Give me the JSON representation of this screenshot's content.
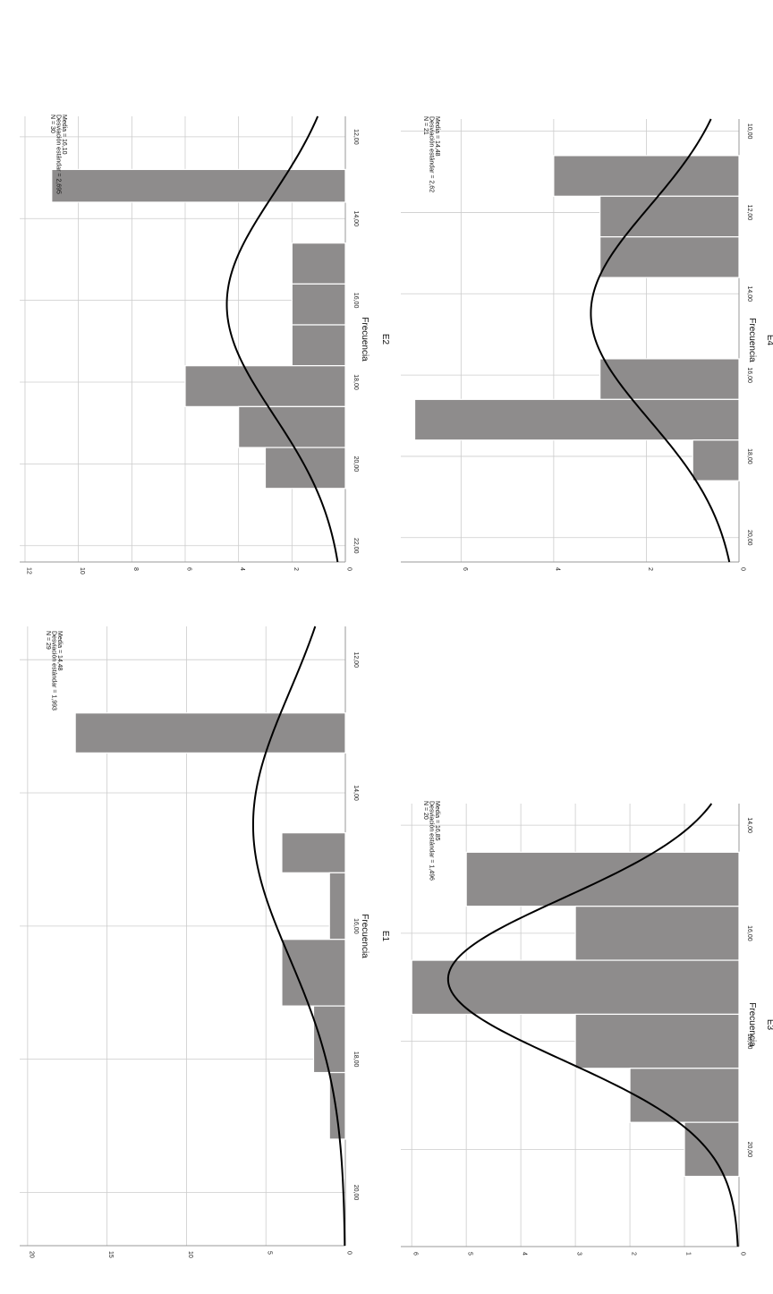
{
  "chart_data": [
    {
      "id": "E1",
      "type": "histogram",
      "title": "",
      "xlabel": "E1",
      "ylabel": "Frecuencia",
      "x_ticks": [
        12,
        14,
        16,
        18,
        20
      ],
      "x_tick_labels": [
        "12,00",
        "14,00",
        "16,00",
        "18,00",
        "20,00"
      ],
      "xlim": [
        11.5,
        20.8
      ],
      "y_ticks": [
        0,
        5,
        10,
        15,
        20
      ],
      "y_tick_labels": [
        "0",
        "5",
        "10",
        "15",
        "20"
      ],
      "ylim": [
        0,
        20.5
      ],
      "bins": [
        {
          "from": 12.8,
          "to": 13.4,
          "value": 17
        },
        {
          "from": 14.6,
          "to": 15.2,
          "value": 4
        },
        {
          "from": 15.2,
          "to": 16.2,
          "value": 1
        },
        {
          "from": 16.2,
          "to": 17.2,
          "value": 4
        },
        {
          "from": 17.2,
          "to": 18.2,
          "value": 2
        },
        {
          "from": 18.2,
          "to": 19.2,
          "value": 1
        }
      ],
      "normal_curve": {
        "mean": 14.48,
        "sd": 1.993,
        "n": 29,
        "bin_width": 1.0
      },
      "stats": [
        "Media = 14,48",
        "Desviación estándar = 1,993",
        "N = 29"
      ],
      "grid": true
    },
    {
      "id": "E2",
      "type": "histogram",
      "title": "",
      "xlabel": "E2",
      "ylabel": "Frecuencia",
      "x_ticks": [
        12,
        14,
        16,
        18,
        20,
        22
      ],
      "x_tick_labels": [
        "12,00",
        "14,00",
        "16,00",
        "18,00",
        "20,00",
        "22,00"
      ],
      "xlim": [
        11.5,
        22.4
      ],
      "y_ticks": [
        0,
        2,
        4,
        6,
        8,
        10,
        12
      ],
      "y_tick_labels": [
        "0",
        "2",
        "4",
        "6",
        "8",
        "10",
        "12"
      ],
      "ylim": [
        0,
        12.2
      ],
      "bins": [
        {
          "from": 12.8,
          "to": 13.6,
          "value": 11
        },
        {
          "from": 14.6,
          "to": 15.6,
          "value": 2
        },
        {
          "from": 15.6,
          "to": 16.6,
          "value": 2
        },
        {
          "from": 16.6,
          "to": 17.6,
          "value": 2
        },
        {
          "from": 17.6,
          "to": 18.6,
          "value": 6
        },
        {
          "from": 18.6,
          "to": 19.6,
          "value": 4
        },
        {
          "from": 19.6,
          "to": 20.6,
          "value": 3
        }
      ],
      "normal_curve": {
        "mean": 16.1,
        "sd": 2.695,
        "n": 30,
        "bin_width": 1.0
      },
      "stats": [
        "Media = 16,10",
        "Desviación estándar = 2,695",
        "N = 30"
      ],
      "grid": true
    },
    {
      "id": "E3",
      "type": "histogram",
      "title": "",
      "xlabel": "E3",
      "ylabel": "Frecuencia",
      "x_ticks": [
        14,
        16,
        18,
        20
      ],
      "x_tick_labels": [
        "14,00",
        "16,00",
        "18,00",
        "20,00"
      ],
      "xlim": [
        13.6,
        21.8
      ],
      "y_ticks": [
        0,
        1,
        2,
        3,
        4,
        5,
        6
      ],
      "y_tick_labels": [
        "0",
        "1",
        "2",
        "3",
        "4",
        "5",
        "6"
      ],
      "ylim": [
        0,
        6.2
      ],
      "bins": [
        {
          "from": 14.5,
          "to": 15.5,
          "value": 5
        },
        {
          "from": 15.5,
          "to": 16.5,
          "value": 3
        },
        {
          "from": 16.5,
          "to": 17.5,
          "value": 6
        },
        {
          "from": 17.5,
          "to": 18.5,
          "value": 3
        },
        {
          "from": 18.5,
          "to": 19.5,
          "value": 2
        },
        {
          "from": 19.5,
          "to": 20.5,
          "value": 1
        }
      ],
      "normal_curve": {
        "mean": 16.85,
        "sd": 1.496,
        "n": 20,
        "bin_width": 1.0
      },
      "stats": [
        "Media = 16,85",
        "Desviación estándar = 1,496",
        "N = 20"
      ],
      "grid": true
    },
    {
      "id": "E4",
      "type": "histogram",
      "title": "",
      "xlabel": "E4",
      "ylabel": "Frecuencia",
      "x_ticks": [
        10,
        12,
        14,
        16,
        18,
        20
      ],
      "x_tick_labels": [
        "10,00",
        "12,00",
        "14,00",
        "16,00",
        "18,00",
        "20,00"
      ],
      "xlim": [
        9.7,
        20.6
      ],
      "y_ticks": [
        0,
        2,
        4,
        6
      ],
      "y_tick_labels": [
        "0",
        "2",
        "4",
        "6"
      ],
      "ylim": [
        0,
        7.3
      ],
      "bins": [
        {
          "from": 10.6,
          "to": 11.6,
          "value": 4
        },
        {
          "from": 11.6,
          "to": 12.6,
          "value": 3
        },
        {
          "from": 12.6,
          "to": 13.6,
          "value": 3
        },
        {
          "from": 15.6,
          "to": 16.6,
          "value": 3
        },
        {
          "from": 16.6,
          "to": 17.6,
          "value": 7
        },
        {
          "from": 17.6,
          "to": 18.6,
          "value": 1
        }
      ],
      "normal_curve": {
        "mean": 14.48,
        "sd": 2.62,
        "n": 21,
        "bin_width": 1.0
      },
      "stats": [
        "Media = 14,48",
        "Desviación estándar = 2,62",
        "N = 21"
      ],
      "grid": true
    }
  ],
  "colors": {
    "bar_fill": "#8e8c8c",
    "bar_stroke": "#ffffff",
    "grid": "#cccccc",
    "axis": "#999999",
    "curve": "#000000",
    "text": "#111111"
  }
}
